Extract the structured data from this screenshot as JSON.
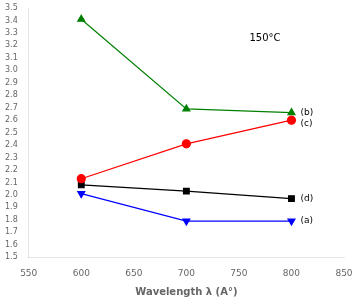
{
  "chart_data": {
    "type": "line",
    "x_label": "Wavelength λ (A°)",
    "annotation": "150°C",
    "x": [
      600,
      700,
      800
    ],
    "series": [
      {
        "name": "(a)",
        "color": "blue",
        "marker": "triangle_down",
        "values": [
          2.01,
          1.79,
          1.79
        ]
      },
      {
        "name": "(b)",
        "color": "green",
        "marker": "triangle_up",
        "values": [
          3.41,
          2.69,
          2.66
        ]
      },
      {
        "name": "(c)",
        "color": "red",
        "marker": "circle",
        "values": [
          2.13,
          2.41,
          2.6
        ]
      },
      {
        "name": "(d)",
        "color": "black",
        "marker": "square",
        "values": [
          2.08,
          2.03,
          1.97
        ]
      }
    ],
    "xlim": [
      550,
      850
    ],
    "xticks": [
      550,
      600,
      650,
      700,
      750,
      800,
      850
    ],
    "ylim": [
      1.5,
      3.5
    ],
    "yticks": [
      1.5,
      1.6,
      1.7,
      1.8,
      1.9,
      {
        "value": 2,
        "label": "2.0"
      },
      2.1,
      2.2,
      2.3,
      2.4,
      2.5,
      2.6,
      2.7,
      2.8,
      2.9,
      {
        "value": 3,
        "label": "3.0"
      },
      3.1,
      3.2,
      3.3,
      3.4,
      3.5
    ],
    "grid": false
  }
}
